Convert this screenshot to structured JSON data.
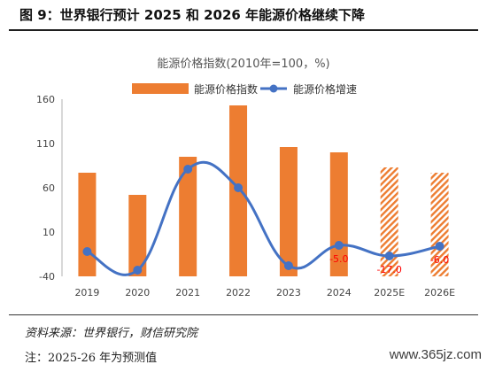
{
  "figure": {
    "title": "图 9：世界银行预计 2025 和 2026 年能源价格继续下降",
    "source": "资料来源：世界银行，财信研究院",
    "note": "注：2025-26 年为预测值",
    "watermark": "www.365jz.com"
  },
  "chart_data": {
    "type": "bar",
    "title": "能源价格指数(2010年=100，%)",
    "categories": [
      "2019",
      "2020",
      "2021",
      "2022",
      "2023",
      "2024",
      "2025E",
      "2026E"
    ],
    "ylim": [
      -40,
      160
    ],
    "yticks": [
      "160",
      "110",
      "60",
      "10",
      "-40"
    ],
    "grid": false,
    "legend_position": "top",
    "series": [
      {
        "name": "能源价格指数",
        "kind": "bar",
        "color": "#ed7d31",
        "values": [
          77,
          52,
          95,
          153,
          106,
          100,
          83,
          77
        ],
        "forecast": [
          false,
          false,
          false,
          false,
          false,
          false,
          true,
          true
        ]
      },
      {
        "name": "能源价格增速",
        "kind": "line",
        "color": "#4472c4",
        "values": [
          -12,
          -33,
          81,
          60,
          -28,
          -5.0,
          -17.0,
          -6.0
        ],
        "data_labels": [
          "",
          "",
          "",
          "",
          "",
          "-5.0",
          "-17.0",
          "-6.0"
        ],
        "label_color": "#ff0000"
      }
    ]
  }
}
